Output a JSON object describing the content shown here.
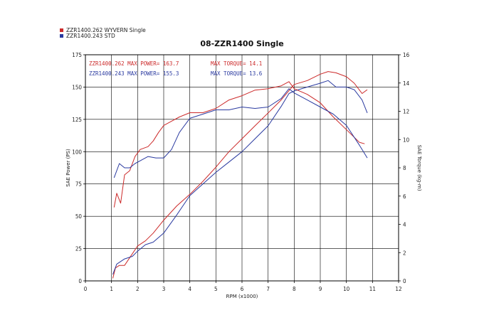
{
  "chart_data": {
    "type": "line",
    "title": "08-ZZR1400 Single",
    "xlabel": "RPM (x1000)",
    "ylabel_left": "SAE Power (PS)",
    "ylabel_right": "SAE Torque (kg-m)",
    "xlim": [
      0,
      12
    ],
    "ylim_left": [
      0,
      175
    ],
    "ylim_right": [
      0,
      16
    ],
    "x_ticks": [
      "0",
      "1",
      "2",
      "3",
      "4",
      "5",
      "6",
      "7",
      "8",
      "9",
      "10",
      "11",
      "12"
    ],
    "y_left_ticks": [
      "0",
      "25",
      "50",
      "75",
      "100",
      "125",
      "150",
      "175"
    ],
    "y_right_ticks": [
      "0",
      "2",
      "4",
      "6",
      "8",
      "10",
      "12",
      "14",
      "16"
    ],
    "grid": true,
    "legend_position": "top-left",
    "legend": [
      {
        "label": "ZZR1400.262  WYVERN Single",
        "color": "#cc2a2a"
      },
      {
        "label": "ZZR1400.243  STD",
        "color": "#2a3aa0"
      }
    ],
    "annotations": [
      {
        "text": "ZZR1400.262  MAX POWER= 163.7",
        "color": "#cc2a2a"
      },
      {
        "text": "MAX TORQUE= 14.1",
        "color": "#cc2a2a"
      },
      {
        "text": "ZZR1400.243  MAX POWER= 155.3",
        "color": "#2a3aa0"
      },
      {
        "text": "MAX TORQUE= 13.6",
        "color": "#2a3aa0"
      }
    ],
    "series": [
      {
        "name": "ZZR1400.262 Power",
        "axis": "left",
        "color": "#cc2a2a",
        "x": [
          1.05,
          1.15,
          1.3,
          1.5,
          1.7,
          2.0,
          2.3,
          2.6,
          3.0,
          3.5,
          4.0,
          4.5,
          5.0,
          5.5,
          6.0,
          6.5,
          7.0,
          7.5,
          8.0,
          8.5,
          9.0,
          9.3,
          9.6,
          10.0,
          10.3,
          10.6,
          10.8
        ],
        "y": [
          2,
          10,
          12,
          12,
          18,
          27,
          31,
          37,
          47,
          58,
          67,
          77,
          88,
          100,
          110,
          120,
          130,
          140,
          152,
          155,
          160,
          162,
          161,
          158,
          153,
          145,
          148
        ]
      },
      {
        "name": "ZZR1400.243 Power",
        "axis": "left",
        "color": "#2a3aa0",
        "x": [
          1.05,
          1.2,
          1.5,
          1.8,
          2.0,
          2.3,
          2.6,
          3.0,
          3.5,
          4.0,
          4.5,
          5.0,
          5.5,
          6.0,
          6.5,
          7.0,
          7.5,
          7.8,
          8.0,
          8.5,
          9.0,
          9.3,
          9.6,
          10.0,
          10.3,
          10.6,
          10.8
        ],
        "y": [
          5,
          13,
          17,
          19,
          23,
          28,
          30,
          37,
          51,
          66,
          75,
          84,
          92,
          100,
          110,
          120,
          135,
          145,
          147,
          150,
          153,
          155,
          150,
          150,
          148,
          140,
          130
        ]
      },
      {
        "name": "ZZR1400.262 Torque",
        "axis": "right",
        "color": "#cc2a2a",
        "x": [
          1.1,
          1.2,
          1.35,
          1.5,
          1.7,
          1.9,
          2.1,
          2.4,
          2.6,
          2.8,
          3.0,
          3.3,
          3.6,
          4.0,
          4.5,
          5.0,
          5.5,
          6.0,
          6.5,
          7.0,
          7.5,
          7.8,
          8.0,
          8.5,
          9.0,
          9.5,
          10.0,
          10.5,
          10.7
        ],
        "y": [
          5.2,
          6.2,
          5.5,
          7.5,
          7.8,
          8.8,
          9.3,
          9.5,
          9.9,
          10.5,
          11.0,
          11.3,
          11.6,
          11.9,
          11.9,
          12.2,
          12.8,
          13.1,
          13.5,
          13.6,
          13.8,
          14.1,
          13.6,
          13.2,
          12.6,
          11.6,
          10.7,
          9.8,
          9.7
        ]
      },
      {
        "name": "ZZR1400.243 Torque",
        "axis": "right",
        "color": "#2a3aa0",
        "x": [
          1.1,
          1.3,
          1.5,
          1.7,
          1.9,
          2.1,
          2.4,
          2.7,
          3.0,
          3.3,
          3.6,
          4.0,
          4.5,
          5.0,
          5.5,
          6.0,
          6.5,
          7.0,
          7.5,
          7.8,
          8.0,
          8.5,
          9.0,
          9.5,
          10.0,
          10.5,
          10.8
        ],
        "y": [
          7.3,
          8.3,
          8.0,
          8.0,
          8.3,
          8.5,
          8.8,
          8.7,
          8.7,
          9.3,
          10.5,
          11.5,
          11.8,
          12.1,
          12.1,
          12.3,
          12.2,
          12.3,
          12.9,
          13.6,
          13.3,
          12.8,
          12.3,
          11.8,
          11.0,
          9.6,
          8.7
        ]
      }
    ]
  }
}
